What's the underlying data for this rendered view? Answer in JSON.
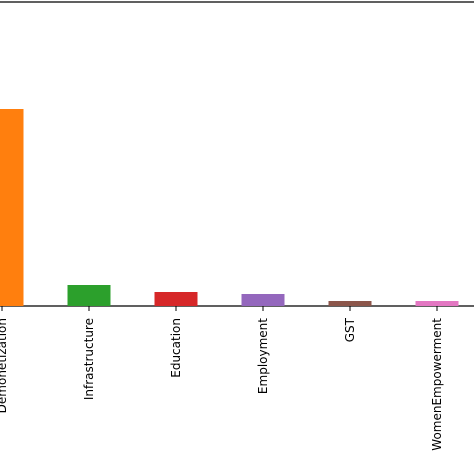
{
  "chart_data": {
    "type": "bar",
    "categories": [
      "Demonetization",
      "Infrastructure",
      "Education",
      "Employment",
      "GST",
      "WomenEmpowerment"
    ],
    "tick_labels": [
      "Demonetization",
      "Infrastructure",
      "Education",
      "Employment",
      "GST",
      "WomenEmpowerment"
    ],
    "values": [
      197,
      21,
      14,
      12,
      5,
      5
    ],
    "colors": [
      "#ff7f0e",
      "#2ca02c",
      "#d62728",
      "#9467bd",
      "#8c564b",
      "#e377c2"
    ],
    "title": "",
    "xlabel": "",
    "ylabel": "",
    "ylim": [
      0,
      260
    ],
    "grid": false,
    "legend": "none"
  }
}
